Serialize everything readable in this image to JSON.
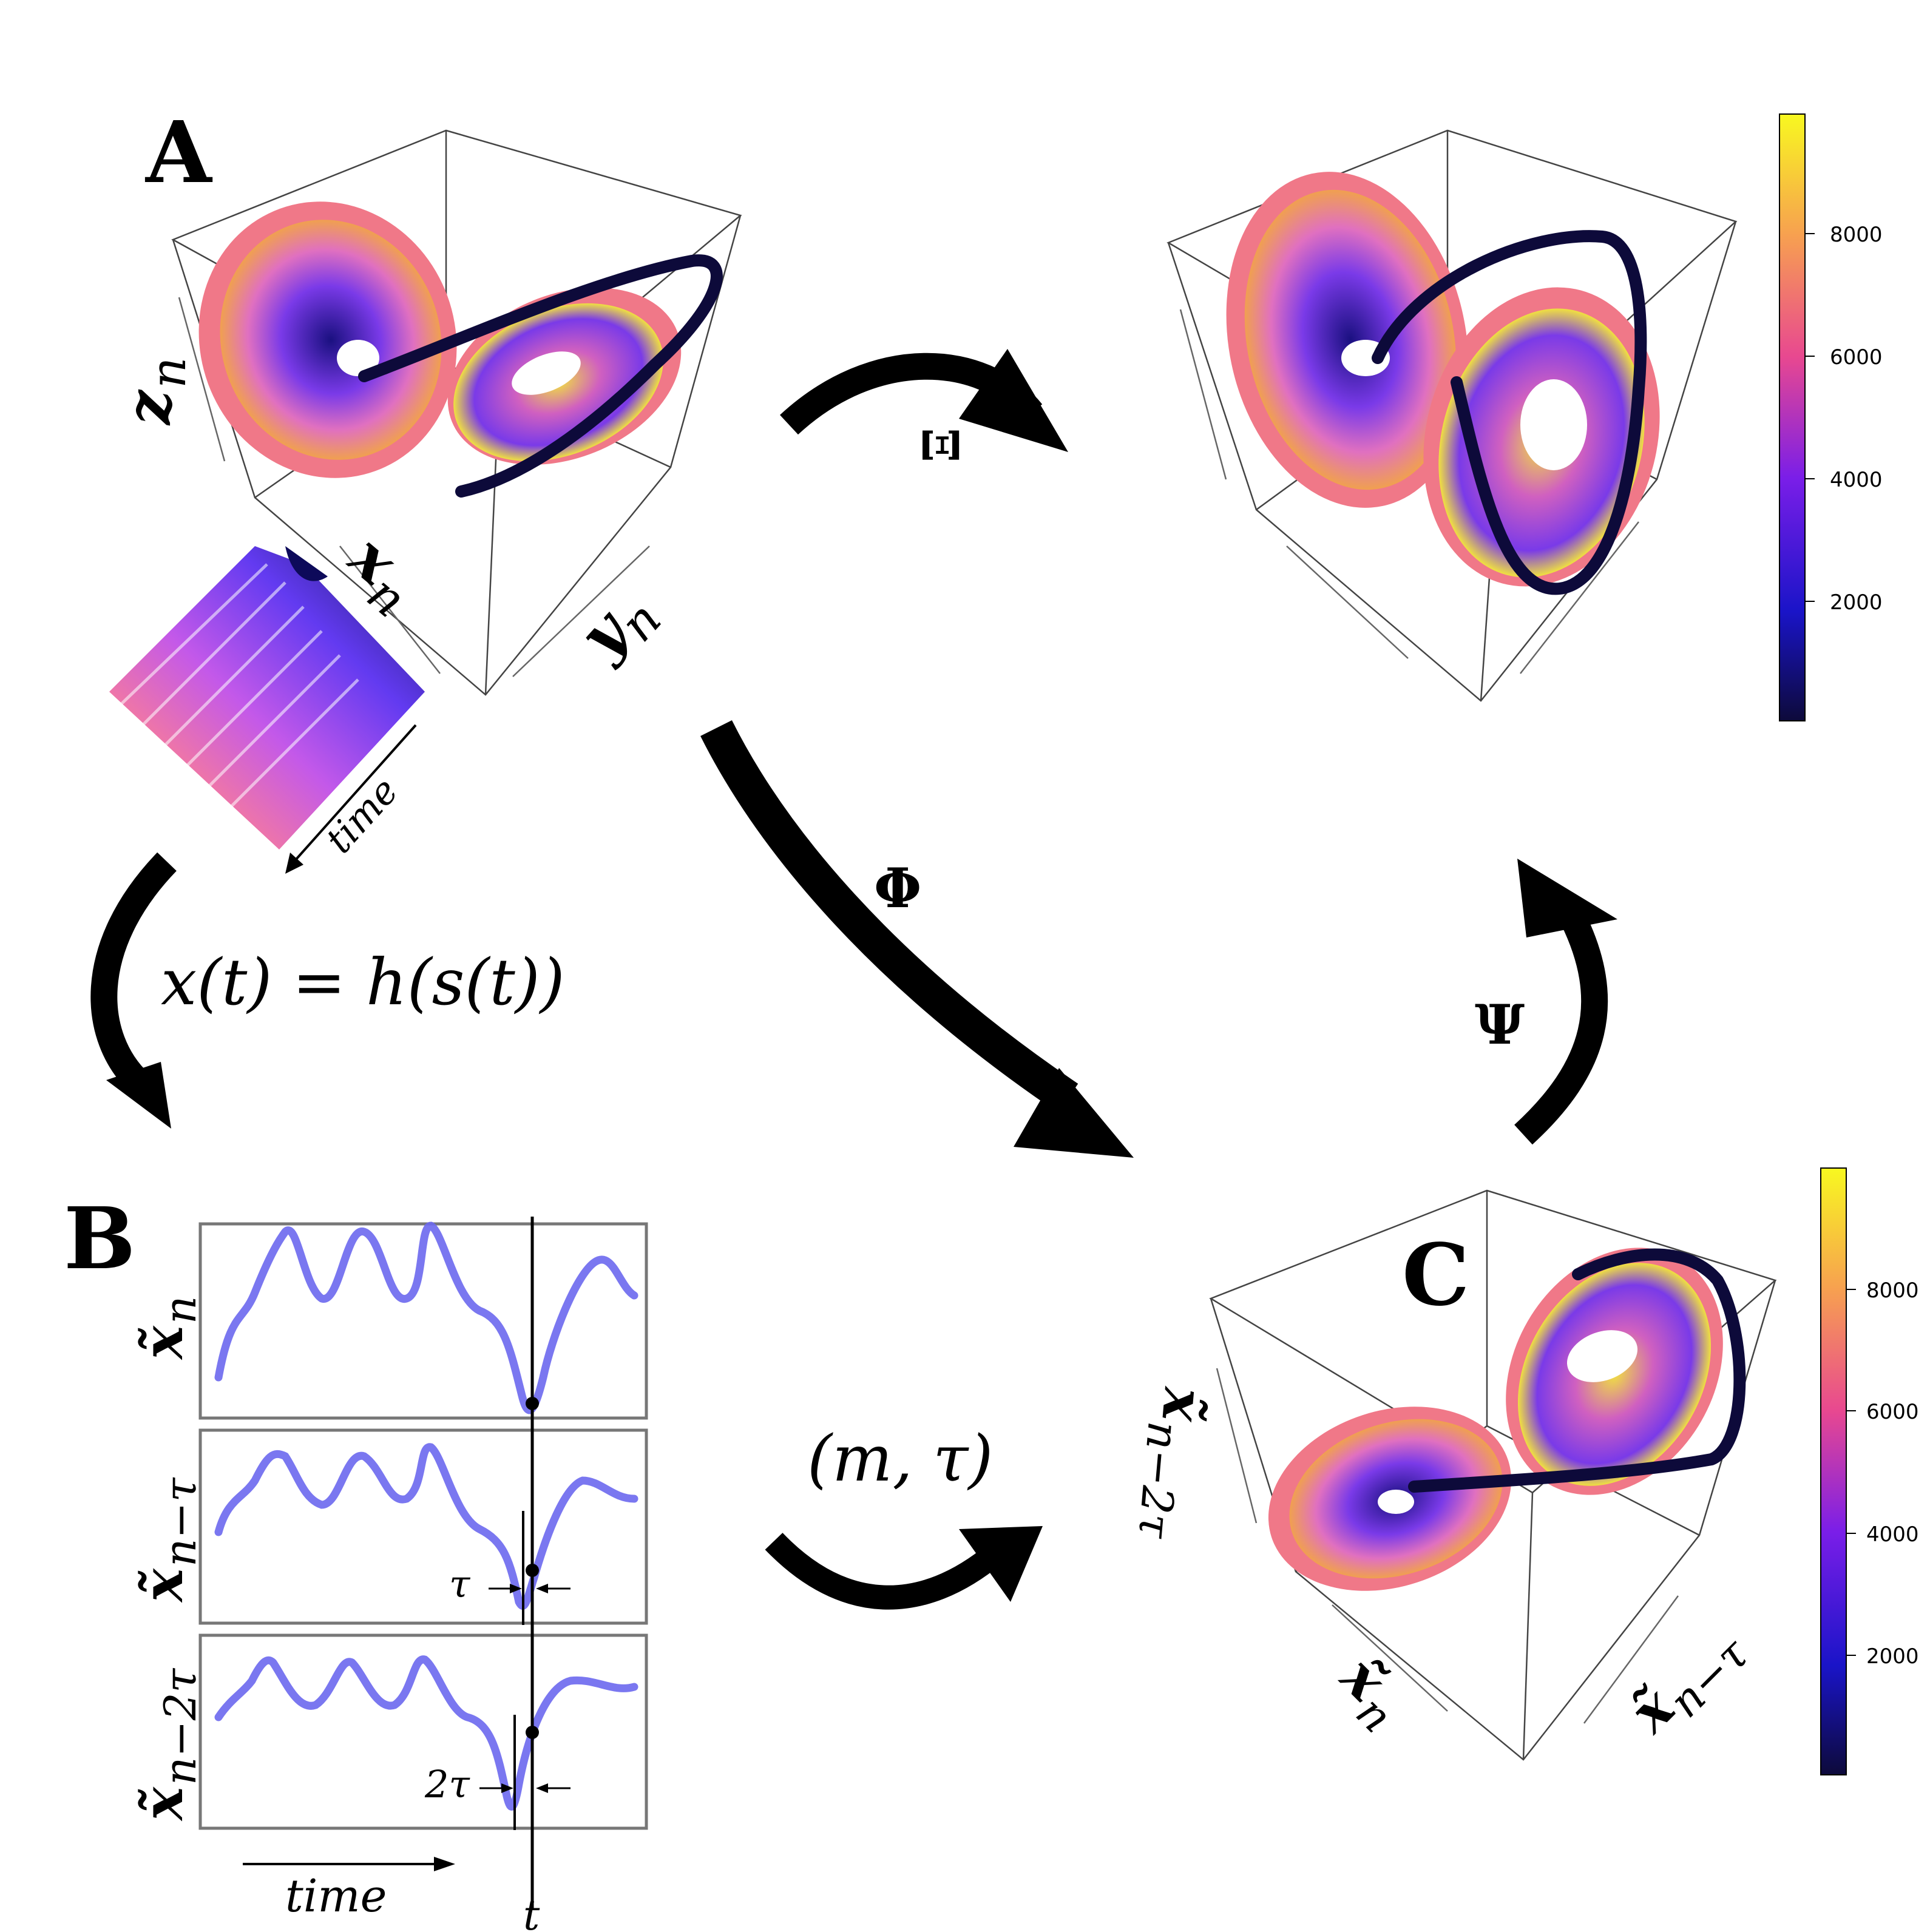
{
  "panels": {
    "a": "A",
    "b": "B",
    "c": "C"
  },
  "arrows": {
    "xi": "Ξ",
    "phi": "Φ",
    "psi": "Ψ",
    "observation": "x(t) = h(s(t))",
    "embedding": "(m, τ)"
  },
  "panel_a": {
    "axis_x": "x",
    "axis_x_sub": "n",
    "axis_y": "y",
    "axis_y_sub": "n",
    "axis_z": "z",
    "axis_z_sub": "n",
    "time_label": "time"
  },
  "panel_b": {
    "row1": {
      "label": "x̃",
      "sub": "n"
    },
    "row2": {
      "label": "x̃",
      "sub": "n−τ",
      "tau_label": "τ"
    },
    "row3": {
      "label": "x̃",
      "sub": "n−2τ",
      "tau_label": "2τ"
    },
    "time_label": "time",
    "t_label": "t"
  },
  "panel_c": {
    "axis_x": "x̃",
    "axis_x_sub": "n",
    "axis_y": "x̃",
    "axis_y_sub": "n−τ",
    "axis_z": "x̃",
    "axis_z_sub": "n−2τ"
  },
  "colorbar_top": {
    "ticks": [
      "8000",
      "6000",
      "4000",
      "2000"
    ]
  },
  "colorbar_bottom": {
    "ticks": [
      "8000",
      "6000",
      "4000",
      "2000"
    ]
  },
  "colors": {
    "colormap": [
      "#0d0887",
      "#6a00a8",
      "#b12a90",
      "#e16462",
      "#fca636",
      "#f0f921"
    ],
    "signal": "#6b68ee",
    "arrow": "#000000"
  }
}
